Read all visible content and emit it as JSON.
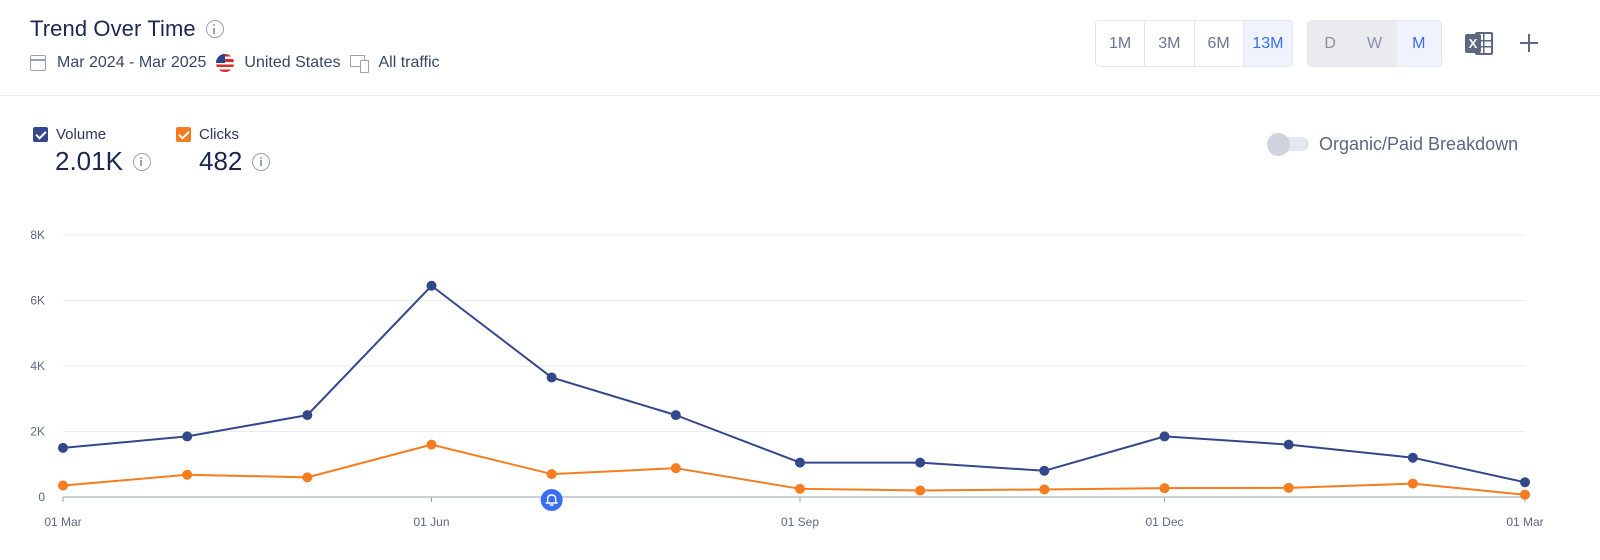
{
  "header": {
    "title": "Trend Over Time",
    "date_range": "Mar 2024 - Mar 2025",
    "country": "United States",
    "traffic": "All traffic",
    "range_buttons": [
      {
        "label": "1M",
        "active": false
      },
      {
        "label": "3M",
        "active": false
      },
      {
        "label": "6M",
        "active": false
      },
      {
        "label": "13M",
        "active": true
      }
    ],
    "granularity_buttons": [
      {
        "label": "D",
        "active": false
      },
      {
        "label": "W",
        "active": false
      },
      {
        "label": "M",
        "active": true
      }
    ],
    "excel_letter": "X",
    "icons": [
      "info-icon",
      "calendar-icon",
      "us-flag-icon",
      "device-icon",
      "excel-icon",
      "plus-icon",
      "bell-icon"
    ]
  },
  "legend": {
    "volume": {
      "label": "Volume",
      "value": "2.01K",
      "color": "#34478a"
    },
    "clicks": {
      "label": "Clicks",
      "value": "482",
      "color": "#f57c1f"
    }
  },
  "toggle": {
    "label": "Organic/Paid Breakdown",
    "on": false
  },
  "chart_data": {
    "type": "line",
    "x": [
      "2024-03-01",
      "2024-04-01",
      "2024-05-01",
      "2024-06-01",
      "2024-07-01",
      "2024-08-01",
      "2024-09-01",
      "2024-10-01",
      "2024-11-01",
      "2024-12-01",
      "2025-01-01",
      "2025-02-01",
      "2025-03-01"
    ],
    "x_ticks": [
      "01 Mar",
      "01 Jun",
      "01 Sep",
      "01 Dec",
      "01 Mar"
    ],
    "y_ticks": [
      "0",
      "2K",
      "4K",
      "6K",
      "8K"
    ],
    "ylim": [
      0,
      8000
    ],
    "grid": true,
    "series": [
      {
        "name": "Volume",
        "color": "#34478a",
        "values": [
          1500,
          1850,
          2500,
          6450,
          3650,
          2500,
          1050,
          1050,
          800,
          1850,
          1600,
          1200,
          450
        ]
      },
      {
        "name": "Clicks",
        "color": "#f57c1f",
        "values": [
          350,
          680,
          600,
          1600,
          700,
          880,
          250,
          200,
          230,
          270,
          280,
          410,
          70
        ]
      }
    ],
    "annotations": [
      {
        "x": "2024-07-01",
        "type": "bell-icon",
        "color": "#3a6cf4"
      }
    ]
  }
}
